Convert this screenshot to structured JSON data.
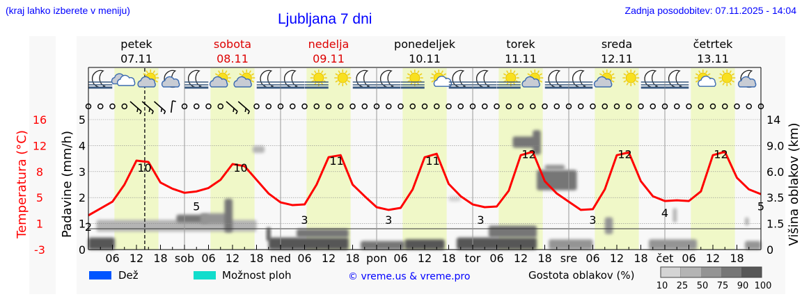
{
  "header": {
    "menu_hint": "(kraj lahko izberete v meniju)",
    "title": "Ljubljana 7 dni",
    "last_update": "Zadnja posodobitev: 07.11.2025 - 14:04"
  },
  "days": [
    {
      "name": "petek",
      "date": "07.11",
      "weekend": false
    },
    {
      "name": "sobota",
      "date": "08.11",
      "weekend": true
    },
    {
      "name": "nedelja",
      "date": "09.11",
      "weekend": true
    },
    {
      "name": "ponedeljek",
      "date": "10.11",
      "weekend": false
    },
    {
      "name": "torek",
      "date": "11.11",
      "weekend": false
    },
    {
      "name": "sreda",
      "date": "12.11",
      "weekend": false
    },
    {
      "name": "četrtek",
      "date": "13.11",
      "weekend": false
    }
  ],
  "colors": {
    "temperature": "#ff0000",
    "weekend": "#dd0000",
    "daylight": "#f0f8c8",
    "rain": "#0055ff",
    "showers": "#11ddcc",
    "link": "#0000ff"
  },
  "icons": [
    "moon-fog",
    "cloudy",
    "sun-cloud",
    "moon-cloud",
    "moon-fog",
    "sun-cloud",
    "sun-cloud",
    "moon-fog",
    "moon-fog",
    "sun-fog",
    "sun",
    "moon-fog",
    "moon-fog",
    "sun-fog",
    "sun-small-cloud",
    "moon-fog",
    "moon-fog",
    "sun-fog",
    "sun-cloud",
    "moon-fog",
    "moon-fog",
    "sun-cloud",
    "sun",
    "moon-fog",
    "moon-fog",
    "sun-small-cloud",
    "sun",
    "moon-cloud"
  ],
  "chart_data": {
    "type": "line",
    "x_unit_hours_from": "petek 07.11 00:00",
    "x_tick_labels": [
      "06",
      "12",
      "18",
      "sob",
      "06",
      "12",
      "18",
      "ned",
      "06",
      "12",
      "18",
      "pon",
      "06",
      "12",
      "18",
      "tor",
      "06",
      "12",
      "18",
      "sre",
      "06",
      "12",
      "18",
      "čet",
      "06",
      "12",
      "18"
    ],
    "now_marker_hour": 14.07,
    "daylight_hours": [
      6.5,
      17.5
    ],
    "temperature": {
      "axis_label": "Temperatura (°C)",
      "ticks": [
        "16",
        "12",
        "8",
        "5",
        "1",
        "-3"
      ],
      "ylim": [
        -3,
        16
      ],
      "hours": [
        0,
        3,
        6,
        9,
        12,
        15,
        18,
        21,
        24,
        27,
        30,
        33,
        36,
        39,
        42,
        45,
        48,
        51,
        54,
        57,
        60,
        63,
        66,
        69,
        72,
        75,
        78,
        81,
        84,
        87,
        90,
        93,
        96,
        99,
        102,
        105,
        108,
        111,
        114,
        117,
        120,
        123,
        126,
        129,
        132,
        135,
        138,
        141,
        144,
        147,
        150,
        153,
        156,
        159,
        162,
        165,
        168
      ],
      "values": [
        2.0,
        3.0,
        4.0,
        6.5,
        10.0,
        9.8,
        6.8,
        5.9,
        5.3,
        5.5,
        6.0,
        7.2,
        9.5,
        9.2,
        7.2,
        5.2,
        3.9,
        3.5,
        3.6,
        6.5,
        10.5,
        10.8,
        6.5,
        4.8,
        3.2,
        2.8,
        3.1,
        5.8,
        10.5,
        11.0,
        6.6,
        4.8,
        3.6,
        3.2,
        3.3,
        5.6,
        10.8,
        11.3,
        7.0,
        5.2,
        4.0,
        2.8,
        2.9,
        5.8,
        10.8,
        11.2,
        7.0,
        4.8,
        4.1,
        4.2,
        4.1,
        5.5,
        10.8,
        11.3,
        7.5,
        5.8,
        5.1
      ],
      "labels": [
        {
          "hour": 0,
          "value": "2"
        },
        {
          "hour": 14,
          "value": "10"
        },
        {
          "hour": 27,
          "value": "5"
        },
        {
          "hour": 38,
          "value": "10"
        },
        {
          "hour": 54,
          "value": "3"
        },
        {
          "hour": 62,
          "value": "11"
        },
        {
          "hour": 75,
          "value": "3"
        },
        {
          "hour": 86,
          "value": "11"
        },
        {
          "hour": 98,
          "value": "3"
        },
        {
          "hour": 110,
          "value": "12"
        },
        {
          "hour": 126,
          "value": "3"
        },
        {
          "hour": 134,
          "value": "12"
        },
        {
          "hour": 144,
          "value": "4"
        },
        {
          "hour": 158,
          "value": "12"
        },
        {
          "hour": 168,
          "value": "5"
        }
      ]
    },
    "precipitation": {
      "axis_label": "Padavine (mm/h)",
      "ticks": [
        "0",
        "1",
        "2",
        "3",
        "4",
        "5"
      ],
      "ylim": [
        0,
        5
      ],
      "values": []
    },
    "cloud_height": {
      "axis_label": "Višina oblakov (km)",
      "ticks": [
        "0",
        "1.5",
        "3.5",
        "6.0",
        "9.0",
        "14"
      ],
      "blobs": [
        {
          "t0": 0,
          "t1": 6.6,
          "km0": 0,
          "km1": 0.7,
          "density": 90
        },
        {
          "t0": 45,
          "t1": 65,
          "km0": 0,
          "km1": 0.7,
          "density": 90
        },
        {
          "t0": 52,
          "t1": 65,
          "km0": 0.7,
          "km1": 1.2,
          "density": 75
        },
        {
          "t0": 68,
          "t1": 79,
          "km0": 0,
          "km1": 0.5,
          "density": 75
        },
        {
          "t0": 79,
          "t1": 89,
          "km0": 0,
          "km1": 0.6,
          "density": 90
        },
        {
          "t0": 92,
          "t1": 112,
          "km0": 0,
          "km1": 0.7,
          "density": 90
        },
        {
          "t0": 100,
          "t1": 112,
          "km0": 0.7,
          "km1": 1.4,
          "density": 75
        },
        {
          "t0": 115,
          "t1": 126,
          "km0": 0,
          "km1": 0.6,
          "density": 50
        },
        {
          "t0": 140,
          "t1": 152,
          "km0": 0,
          "km1": 0.6,
          "density": 50
        },
        {
          "t0": 164,
          "t1": 168,
          "km0": 0,
          "km1": 0.5,
          "density": 50
        },
        {
          "t0": 2,
          "t1": 42,
          "km0": 1.05,
          "km1": 1.8,
          "density": 25
        },
        {
          "t0": 22,
          "t1": 30,
          "km0": 1.6,
          "km1": 2.2,
          "density": 75
        },
        {
          "t0": 28,
          "t1": 35,
          "km0": 1.5,
          "km1": 2.3,
          "density": 50
        },
        {
          "t0": 34,
          "t1": 36,
          "km0": 1.0,
          "km1": 3.4,
          "density": 75
        },
        {
          "t0": 44.5,
          "t1": 45.5,
          "km0": 0.5,
          "km1": 1.3,
          "density": 90
        },
        {
          "t0": 41,
          "t1": 44,
          "km0": 8.2,
          "km1": 9.0,
          "density": 25
        },
        {
          "t0": 90,
          "t1": 93,
          "km0": 3.2,
          "km1": 3.6,
          "density": 10
        },
        {
          "t0": 106,
          "t1": 112,
          "km0": 8.8,
          "km1": 10.8,
          "density": 75
        },
        {
          "t0": 111,
          "t1": 113,
          "km0": 8,
          "km1": 12,
          "density": 75
        },
        {
          "t0": 112,
          "t1": 122,
          "km0": 4.2,
          "km1": 6.2,
          "density": 75
        },
        {
          "t0": 114,
          "t1": 119,
          "km0": 6.2,
          "km1": 6.8,
          "density": 50
        },
        {
          "t0": 129,
          "t1": 131,
          "km0": 0.9,
          "km1": 2.0,
          "density": 50
        },
        {
          "t0": 146,
          "t1": 147,
          "km0": 1.6,
          "km1": 2.7,
          "density": 25
        },
        {
          "t0": 164,
          "t1": 165,
          "km0": 1.4,
          "km1": 2.0,
          "density": 25
        }
      ]
    },
    "wind": [
      "calm",
      "calm",
      "calm",
      "calm",
      "barb-nw",
      "barb-nw",
      "barb-nw",
      "barb-n",
      "calm",
      "calm",
      "calm",
      "calm",
      "barb-nw",
      "barb-nw",
      "calm",
      "calm",
      "calm",
      "calm",
      "calm",
      "calm",
      "calm",
      "calm",
      "calm",
      "calm",
      "calm",
      "calm",
      "calm",
      "calm",
      "calm",
      "calm",
      "calm",
      "calm",
      "calm",
      "calm",
      "calm",
      "calm",
      "calm",
      "calm",
      "calm",
      "calm",
      "calm",
      "calm",
      "calm",
      "calm",
      "calm",
      "calm",
      "calm",
      "calm",
      "calm",
      "calm",
      "calm",
      "calm",
      "calm",
      "calm",
      "calm",
      "calm",
      "calm"
    ]
  },
  "legend": {
    "rain": "Dež",
    "showers": "Možnost ploh",
    "copyright": "© vreme.us & vreme.pro",
    "cloud_density_title": "Gostota oblakov (%)",
    "density_levels": [
      "10",
      "25",
      "50",
      "75",
      "90",
      "100"
    ],
    "density_colors": [
      "#d4d4d4",
      "#b4b4b4",
      "#949494",
      "#767676",
      "#575757"
    ]
  }
}
